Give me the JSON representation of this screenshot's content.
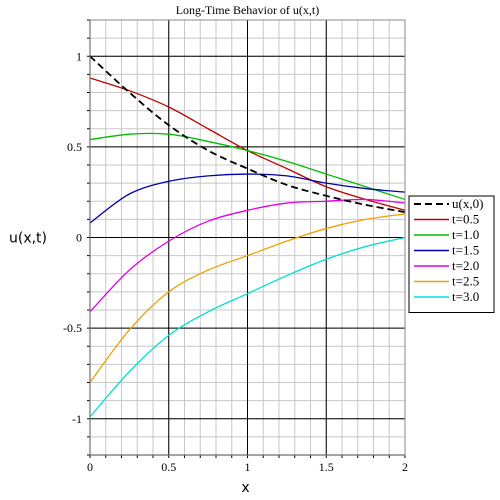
{
  "chart_data": {
    "type": "line",
    "title": "Long-Time Behavior of u(x,t)",
    "xlabel": "x",
    "ylabel": "u(x,t)",
    "xlim": [
      0,
      2
    ],
    "ylim": [
      -1.2,
      1.2
    ],
    "grid": true,
    "minor_grid": true,
    "legend_position": "right",
    "x": [
      0,
      0.25,
      0.5,
      0.75,
      1.0,
      1.25,
      1.5,
      1.75,
      2.0
    ],
    "x_ticks": [
      {
        "value": 0,
        "label": "0"
      },
      {
        "value": 0.5,
        "label": "0.5"
      },
      {
        "value": 1,
        "label": "1"
      },
      {
        "value": 1.5,
        "label": "1.5"
      },
      {
        "value": 2,
        "label": "2"
      }
    ],
    "y_ticks": [
      {
        "value": 1,
        "label": "1"
      },
      {
        "value": 0.5,
        "label": "0.5"
      },
      {
        "value": 0,
        "label": "0"
      },
      {
        "value": -0.5,
        "label": "-0.5"
      },
      {
        "value": -1,
        "label": "-1"
      }
    ],
    "series": [
      {
        "name": "u(x,0)",
        "color": "#000000",
        "dash": true,
        "values": [
          1.0,
          0.8,
          0.62,
          0.48,
          0.38,
          0.29,
          0.23,
          0.18,
          0.14
        ]
      },
      {
        "name": "t=0.5",
        "color": "#c00000",
        "dash": false,
        "values": [
          0.88,
          0.81,
          0.72,
          0.6,
          0.48,
          0.38,
          0.28,
          0.21,
          0.15
        ]
      },
      {
        "name": "t=1.0",
        "color": "#00bb00",
        "dash": false,
        "values": [
          0.54,
          0.57,
          0.57,
          0.53,
          0.48,
          0.42,
          0.35,
          0.28,
          0.21
        ]
      },
      {
        "name": "t=1.5",
        "color": "#0000aa",
        "dash": false,
        "values": [
          0.08,
          0.24,
          0.31,
          0.34,
          0.35,
          0.34,
          0.3,
          0.27,
          0.25
        ]
      },
      {
        "name": "t=2.0",
        "color": "#e000e0",
        "dash": false,
        "values": [
          -0.41,
          -0.18,
          -0.02,
          0.09,
          0.15,
          0.19,
          0.2,
          0.21,
          0.19
        ]
      },
      {
        "name": "t=2.5",
        "color": "#f0a000",
        "dash": false,
        "values": [
          -0.8,
          -0.51,
          -0.3,
          -0.18,
          -0.1,
          -0.02,
          0.05,
          0.1,
          0.13
        ]
      },
      {
        "name": "t=3.0",
        "color": "#00e0d0",
        "dash": false,
        "values": [
          -0.99,
          -0.74,
          -0.54,
          -0.41,
          -0.31,
          -0.21,
          -0.12,
          -0.05,
          0.0
        ]
      }
    ]
  }
}
